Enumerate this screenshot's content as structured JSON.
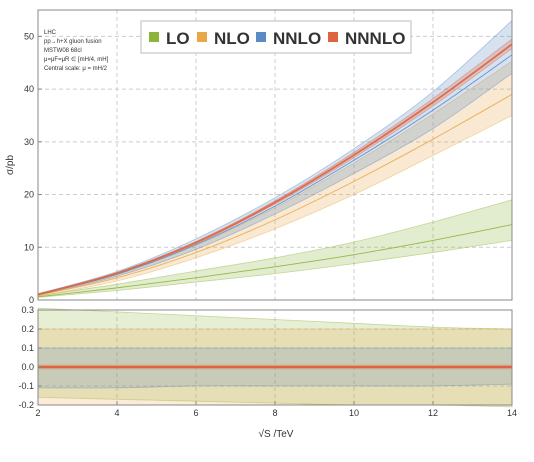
{
  "chart_data": [
    {
      "type": "area",
      "info_lines": [
        "LHC",
        "pp→h+X gluon fusion",
        "MSTW08 68cl",
        "μ=μF=μR ∈ [mH/4, mH]",
        "Central scale: μ = mH/2"
      ],
      "ylabel": "σ/pb",
      "xlim": [
        2,
        14
      ],
      "ylim": [
        0,
        55
      ],
      "yticks": [
        0,
        10,
        20,
        30,
        40,
        50
      ],
      "xticks": [
        2,
        4,
        6,
        8,
        10,
        12,
        14
      ],
      "grid": true,
      "legend_position": "top-center",
      "series": [
        {
          "name": "LO",
          "color": "#8DB33A",
          "x": [
            2,
            4,
            6,
            8,
            10,
            12,
            14
          ],
          "central": [
            0.6,
            2.3,
            4.2,
            6.3,
            8.6,
            11.3,
            14.3
          ],
          "upper": [
            0.8,
            3.0,
            5.5,
            8.0,
            11.0,
            14.8,
            19.0
          ],
          "lower": [
            0.5,
            1.8,
            3.4,
            5.0,
            6.9,
            9.0,
            11.3
          ]
        },
        {
          "name": "NLO",
          "color": "#E8A84A",
          "x": [
            2,
            4,
            6,
            8,
            10,
            12,
            14
          ],
          "central": [
            0.9,
            4.2,
            9.0,
            15.2,
            22.5,
            30.5,
            39.0
          ],
          "upper": [
            1.1,
            4.8,
            10.4,
            17.5,
            26.0,
            35.3,
            45.3
          ],
          "lower": [
            0.7,
            3.6,
            8.0,
            13.5,
            20.0,
            27.4,
            35.0
          ]
        },
        {
          "name": "NNLO",
          "color": "#5B8AC4",
          "x": [
            2,
            4,
            6,
            8,
            10,
            12,
            14
          ],
          "central": [
            1.0,
            4.9,
            10.5,
            17.8,
            26.5,
            36.0,
            46.5
          ],
          "upper": [
            1.2,
            5.4,
            11.6,
            19.4,
            28.7,
            39.5,
            53.0
          ],
          "lower": [
            0.9,
            4.5,
            9.6,
            16.3,
            24.0,
            32.5,
            43.0
          ]
        },
        {
          "name": "NNNLO",
          "color": "#E0633F",
          "x": [
            2,
            4,
            6,
            8,
            10,
            12,
            14
          ],
          "central": [
            1.05,
            5.1,
            10.9,
            18.5,
            27.5,
            37.5,
            48.5
          ],
          "upper": [
            1.1,
            5.2,
            11.1,
            18.8,
            28.0,
            38.2,
            49.5
          ],
          "lower": [
            1.0,
            5.0,
            10.7,
            18.2,
            27.0,
            36.8,
            47.7
          ]
        }
      ]
    },
    {
      "type": "area",
      "xlabel": "√S /TeV",
      "xlim": [
        2,
        14
      ],
      "ylim": [
        -0.2,
        0.3
      ],
      "yticks": [
        "-0.2",
        "-0.1",
        "0.0",
        "0.1",
        "0.2",
        "0.3"
      ],
      "xticks": [
        2,
        4,
        6,
        8,
        10,
        12,
        14
      ],
      "grid": true,
      "series": [
        {
          "name": "LO",
          "color": "#8DB33A",
          "x": [
            2,
            4,
            6,
            8,
            10,
            12,
            14
          ],
          "upper": [
            0.31,
            0.29,
            0.27,
            0.25,
            0.23,
            0.21,
            0.2
          ],
          "lower": [
            -0.16,
            -0.17,
            -0.18,
            -0.19,
            -0.2,
            -0.2,
            -0.21
          ]
        },
        {
          "name": "NLO",
          "color": "#E8A84A",
          "x": [
            2,
            4,
            6,
            8,
            10,
            12,
            14
          ],
          "upper": [
            0.2,
            0.2,
            0.2,
            0.2,
            0.2,
            0.2,
            0.2
          ],
          "lower": [
            -0.2,
            -0.2,
            -0.2,
            -0.2,
            -0.2,
            -0.2,
            -0.2
          ]
        },
        {
          "name": "NNLO",
          "color": "#5B8AC4",
          "x": [
            2,
            4,
            6,
            8,
            10,
            12,
            14
          ],
          "upper": [
            0.1,
            0.1,
            0.1,
            0.1,
            0.1,
            0.1,
            0.1
          ],
          "lower": [
            -0.11,
            -0.11,
            -0.1,
            -0.1,
            -0.1,
            -0.1,
            -0.09
          ]
        },
        {
          "name": "NNNLO",
          "color": "#E0633F",
          "x": [
            2,
            4,
            6,
            8,
            10,
            12,
            14
          ],
          "upper": [
            0.01,
            0.01,
            0.01,
            0.01,
            0.01,
            0.01,
            0.01
          ],
          "lower": [
            -0.01,
            -0.01,
            -0.01,
            -0.01,
            -0.01,
            -0.01,
            -0.01
          ]
        }
      ]
    }
  ]
}
